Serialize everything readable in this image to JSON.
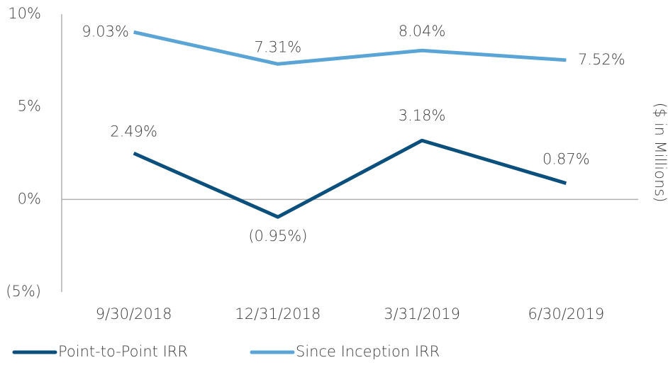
{
  "chart_data": {
    "type": "line",
    "y2_axis_label": "($ in Millions)",
    "categories": [
      "9/30/2018",
      "12/31/2018",
      "3/31/2019",
      "6/30/2019"
    ],
    "series": [
      {
        "name": "Point-to-Point IRR",
        "color": "#0b4f7c",
        "values": [
          2.49,
          -0.95,
          3.18,
          0.87
        ],
        "value_labels": [
          "2.49%",
          "(0.95%)",
          "3.18%",
          "0.87%"
        ]
      },
      {
        "name": "Since Inception IRR",
        "color": "#5aa5d6",
        "values": [
          9.03,
          7.31,
          8.04,
          7.52
        ],
        "value_labels": [
          "9.03%",
          "7.31%",
          "8.04%",
          "7.52%"
        ]
      }
    ],
    "ylim": [
      -5,
      10
    ],
    "yticks": [
      {
        "value": -5,
        "label": "(5%)"
      },
      {
        "value": 0,
        "label": "0%"
      },
      {
        "value": 5,
        "label": "5%"
      },
      {
        "value": 10,
        "label": "10%"
      }
    ],
    "legend": "bottom"
  }
}
